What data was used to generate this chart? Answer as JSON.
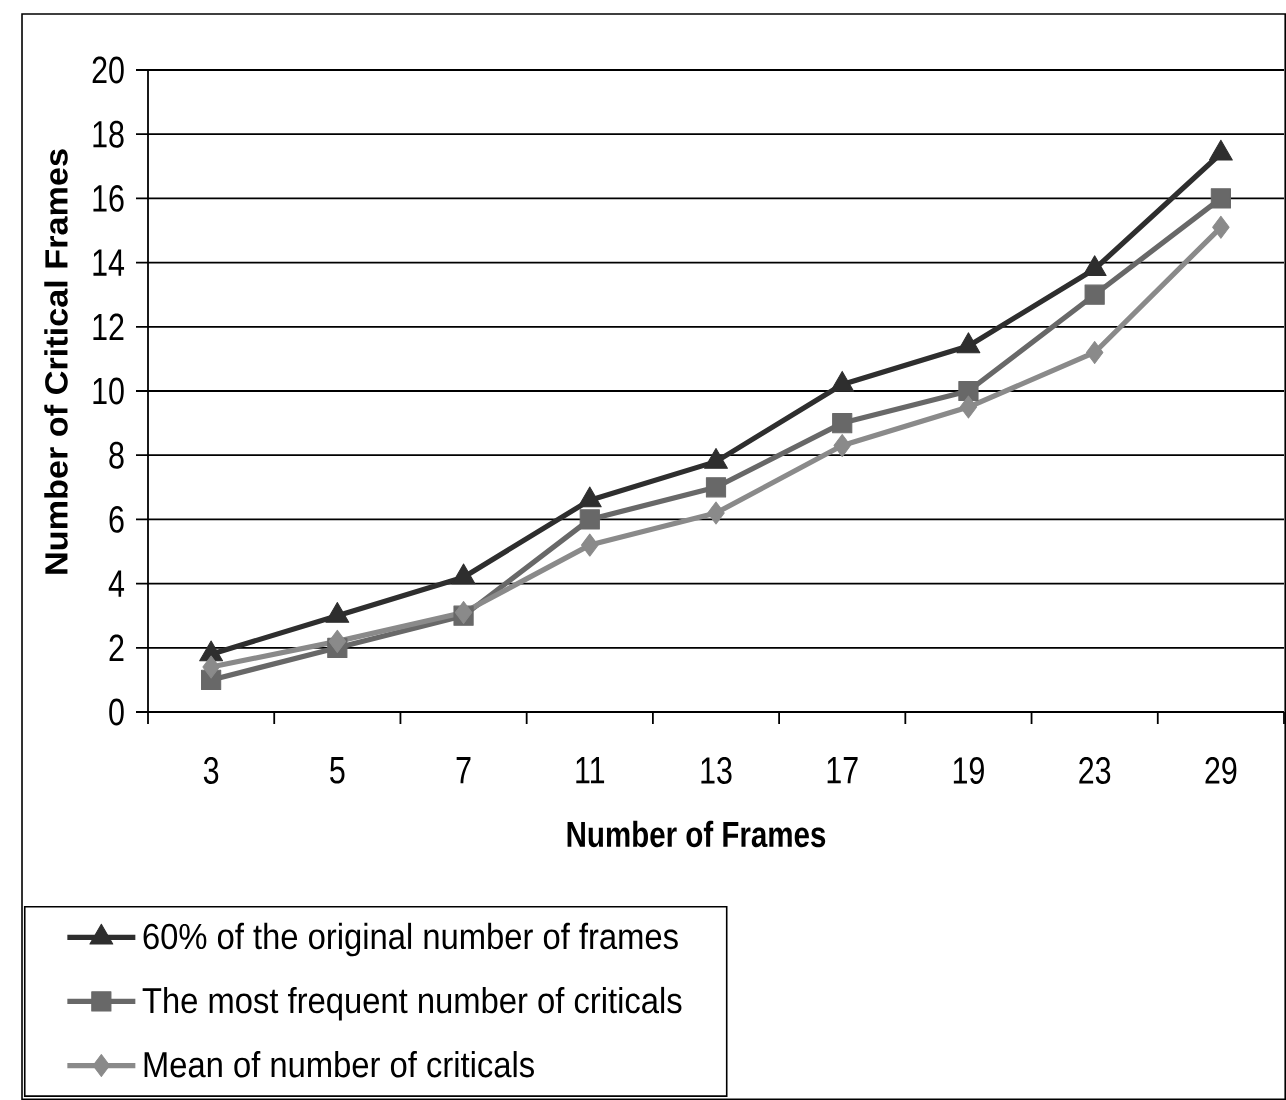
{
  "chart_data": {
    "type": "line",
    "xlabel": "Number of Frames",
    "ylabel": "Number of Critical Frames",
    "categories": [
      "3",
      "5",
      "7",
      "11",
      "13",
      "17",
      "19",
      "23",
      "29"
    ],
    "series": [
      {
        "name": "60% of the original number of frames",
        "color": "#2e2e2e",
        "marker": "triangle",
        "values": [
          1.8,
          3,
          4.2,
          6.6,
          7.8,
          10.2,
          11.4,
          13.8,
          17.4
        ]
      },
      {
        "name": "The most frequent number of criticals",
        "color": "#686868",
        "marker": "square",
        "values": [
          1,
          2,
          3,
          6,
          7,
          9,
          10,
          13,
          16
        ]
      },
      {
        "name": "Mean of number of criticals",
        "color": "#8a8a8a",
        "marker": "diamond",
        "values": [
          1.4,
          2.2,
          3.1,
          5.2,
          6.2,
          8.3,
          9.5,
          11.2,
          15.1
        ]
      }
    ],
    "ylim": [
      0,
      20
    ],
    "yticks": [
      0,
      2,
      4,
      6,
      8,
      10,
      12,
      14,
      16,
      18,
      20
    ],
    "grid": "y",
    "legend": "bottom left",
    "line_style": "solid"
  }
}
